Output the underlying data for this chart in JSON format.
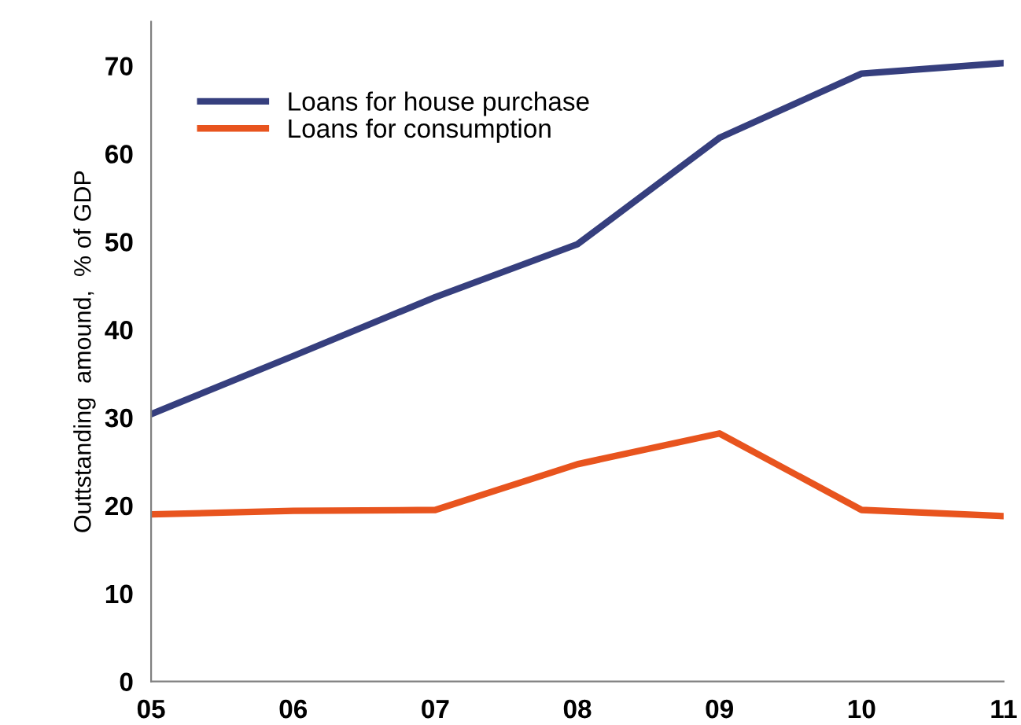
{
  "chart_data": {
    "type": "line",
    "ylabel": "Outtstanding  amound,  % of GDP",
    "categories": [
      "05",
      "06",
      "07",
      "08",
      "09",
      "10",
      "11"
    ],
    "series": [
      {
        "name": "Loans for house purchase",
        "color": "#363f7e",
        "values": [
          30.4,
          37,
          43.7,
          49.7,
          61.8,
          69.1,
          70.3
        ]
      },
      {
        "name": "Loans for consumption",
        "color": "#e8541e",
        "values": [
          19.0,
          19.4,
          19.5,
          24.7,
          28.2,
          19.5,
          18.8
        ]
      }
    ],
    "ylim": [
      0,
      75
    ],
    "yticks": [
      0,
      10,
      20,
      30,
      40,
      50,
      60,
      70
    ],
    "grid": false,
    "legend": "top left",
    "marker": "none",
    "line_style": "solid"
  }
}
